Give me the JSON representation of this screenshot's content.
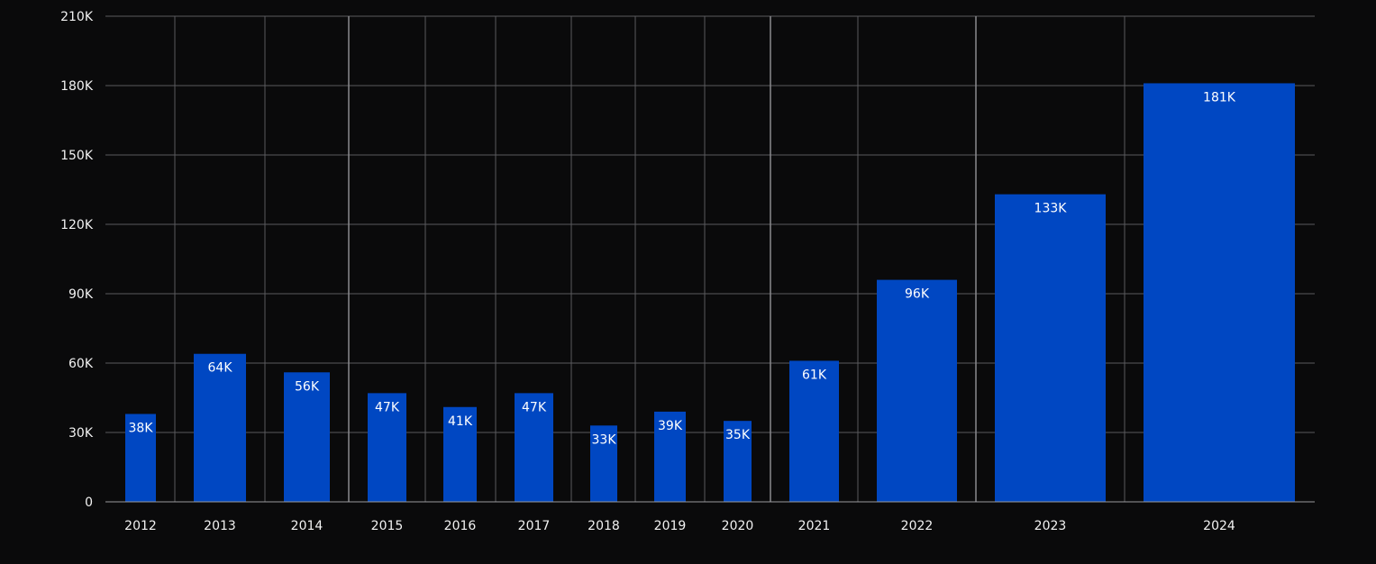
{
  "chart_data": {
    "type": "bar",
    "title": "",
    "xlabel": "",
    "ylabel": "",
    "categories": [
      "2012",
      "2013",
      "2014",
      "2015",
      "2016",
      "2017",
      "2018",
      "2019",
      "2020",
      "2021",
      "2022",
      "2023",
      "2024"
    ],
    "values": [
      38000,
      64000,
      56000,
      47000,
      41000,
      47000,
      33000,
      39000,
      35000,
      61000,
      96000,
      133000,
      181000
    ],
    "data_labels": [
      "38K",
      "64K",
      "56K",
      "47K",
      "41K",
      "47K",
      "33K",
      "39K",
      "35K",
      "61K",
      "96K",
      "133K",
      "181K"
    ],
    "y_ticks": [
      0,
      30000,
      60000,
      90000,
      120000,
      150000,
      180000,
      210000
    ],
    "y_tick_labels": [
      "0",
      "30K",
      "60K",
      "90K",
      "120K",
      "150K",
      "180K",
      "210K"
    ],
    "ylim": [
      0,
      210000
    ],
    "grid": true,
    "legend": "none",
    "colors": {
      "background": "#0a0a0b",
      "bar": "#0047c2",
      "grid": "#5a5a5e",
      "text": "#f2f2f2"
    }
  }
}
